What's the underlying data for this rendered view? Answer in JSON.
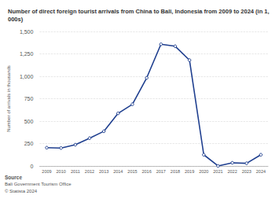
{
  "chart_data": {
    "type": "line",
    "title": "Number of direct foreign tourist arrivals from China to Bali, Indonesia from 2009 to 2024 (in 1,000s)",
    "y_label": "Number of arrivals in thousands",
    "categories": [
      "2009",
      "2010",
      "2011",
      "2012",
      "2013",
      "2014",
      "2015",
      "2016",
      "2017",
      "2018",
      "2019",
      "2020",
      "2021",
      "2022",
      "2023",
      "2024"
    ],
    "values": [
      204,
      200,
      237,
      310,
      387,
      587,
      688,
      982,
      1357,
      1335,
      1180,
      125,
      0.1,
      35,
      30,
      125
    ],
    "color": "#1f3f8f",
    "marker": "circle",
    "ylim": [
      0,
      1500
    ],
    "yticks": [
      0,
      250,
      500,
      750,
      {
        "value": 1000,
        "label": "1,000"
      },
      {
        "value": 1250,
        "label": "1,250"
      },
      {
        "value": 1500,
        "label": "1,500"
      }
    ],
    "grid": true,
    "annotations": [
      "Source",
      "Bali Government Tourism Office",
      "© Statista 2024"
    ]
  }
}
